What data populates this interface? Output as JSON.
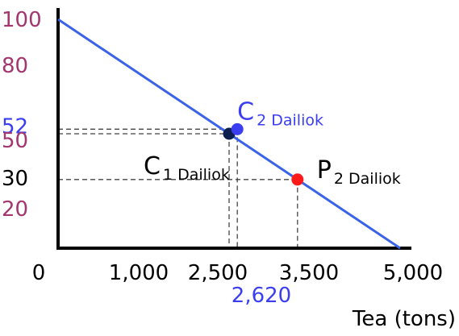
{
  "chart_data": {
    "type": "line",
    "title": "",
    "xlabel": "Tea (tons)",
    "ylabel": "",
    "xlim": [
      0,
      5000
    ],
    "ylim": [
      0,
      100
    ],
    "grid": false,
    "series": [
      {
        "x": [
          0,
          5000
        ],
        "y": [
          100,
          0
        ],
        "color": "#3a63e8"
      }
    ],
    "points": [
      {
        "id": "c1",
        "x": 2500,
        "y": 50,
        "label": "C",
        "subscript": "1 Dailiok",
        "color": "#0b1f4f",
        "text_color": "#000000"
      },
      {
        "id": "c2",
        "x": 2620,
        "y": 52,
        "label": "C",
        "subscript": "2 Dailiok",
        "color": "#3a3ef0",
        "text_color": "#3a3ef0"
      },
      {
        "id": "p2",
        "x": 3500,
        "y": 30,
        "label": "P",
        "subscript": "2 Dailiok",
        "color": "#ff1a1a",
        "text_color": "#000000"
      }
    ],
    "x_ticks": [
      {
        "value": 0,
        "label": "0",
        "color": "#000000"
      },
      {
        "value": 1000,
        "label": "1,000",
        "color": "#000000"
      },
      {
        "value": 2500,
        "label": "2,500",
        "color": "#000000"
      },
      {
        "value": 2620,
        "label": "2,620",
        "color": "#3a3ef0"
      },
      {
        "value": 3500,
        "label": "3,500",
        "color": "#000000"
      },
      {
        "value": 5000,
        "label": "5,000",
        "color": "#000000"
      }
    ],
    "y_ticks": [
      {
        "value": 100,
        "label": "100",
        "color": "#a3356f"
      },
      {
        "value": 80,
        "label": "80",
        "color": "#a3356f"
      },
      {
        "value": 52,
        "label": "52",
        "color": "#3a3ef0"
      },
      {
        "value": 50,
        "label": "50",
        "color": "#a3356f"
      },
      {
        "value": 30,
        "label": "30",
        "color": "#000000"
      },
      {
        "value": 20,
        "label": "20",
        "color": "#a3356f"
      }
    ]
  }
}
